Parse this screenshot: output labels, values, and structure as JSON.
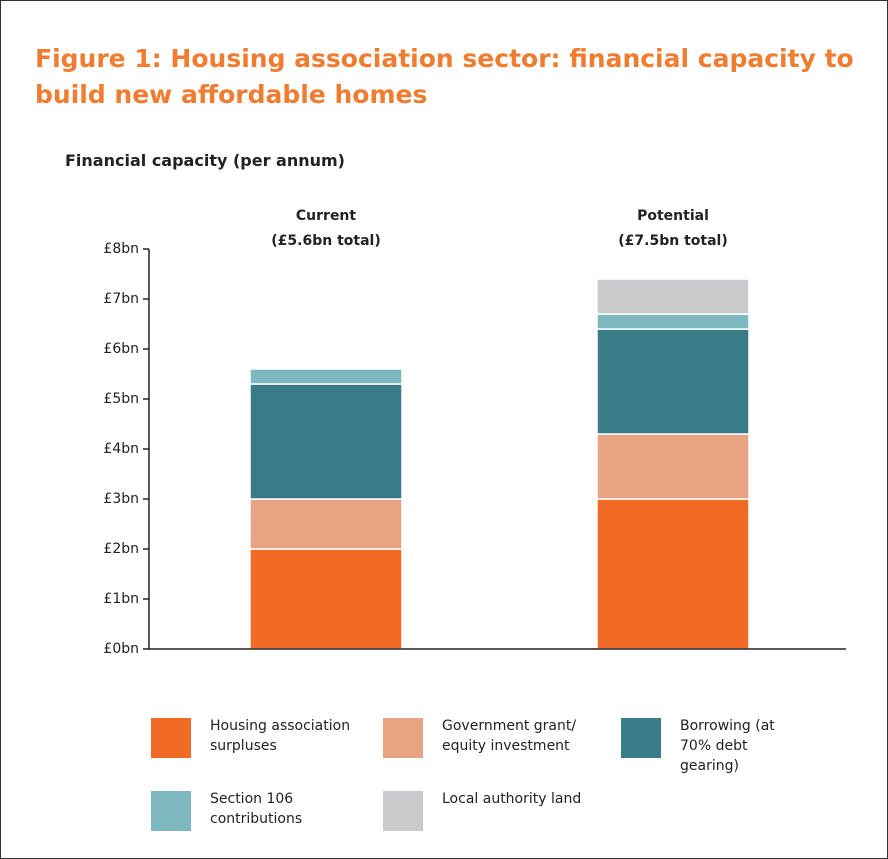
{
  "chart_data": {
    "type": "stacked_bar",
    "title": "Figure 1: Housing association sector: financial capacity to build new affordable homes",
    "y_label": "Financial capacity (per annum)",
    "categories": [
      "Current",
      "Potential"
    ],
    "category_notes": [
      "(£5.6bn total)",
      "(£7.5bn total)"
    ],
    "series": [
      {
        "name": "Housing association surpluses",
        "color": "#f26b26",
        "values": [
          2.0,
          3.0
        ]
      },
      {
        "name": "Government grant/ equity investment",
        "color": "#e8a383",
        "values": [
          1.0,
          1.3
        ]
      },
      {
        "name": "Borrowing (at 70% debt gearing)",
        "color": "#3a7b8a",
        "values": [
          2.3,
          2.1
        ]
      },
      {
        "name": "Section 106 contributions",
        "color": "#7db8c1",
        "values": [
          0.3,
          0.3
        ]
      },
      {
        "name": "Local authority land",
        "color": "#c9cacc",
        "values": [
          0,
          0.7
        ]
      }
    ],
    "ylim": [
      0,
      8
    ],
    "yticks": [
      {
        "value": 0,
        "label": "£0bn"
      },
      {
        "value": 1,
        "label": "£1bn"
      },
      {
        "value": 2,
        "label": "£2bn"
      },
      {
        "value": 3,
        "label": "£3bn"
      },
      {
        "value": 4,
        "label": "£4bn"
      },
      {
        "value": 5,
        "label": "£5bn"
      },
      {
        "value": 6,
        "label": "£6bn"
      },
      {
        "value": 7,
        "label": "£7bn"
      },
      {
        "value": 8,
        "label": "£8bn"
      }
    ],
    "grid": false
  }
}
